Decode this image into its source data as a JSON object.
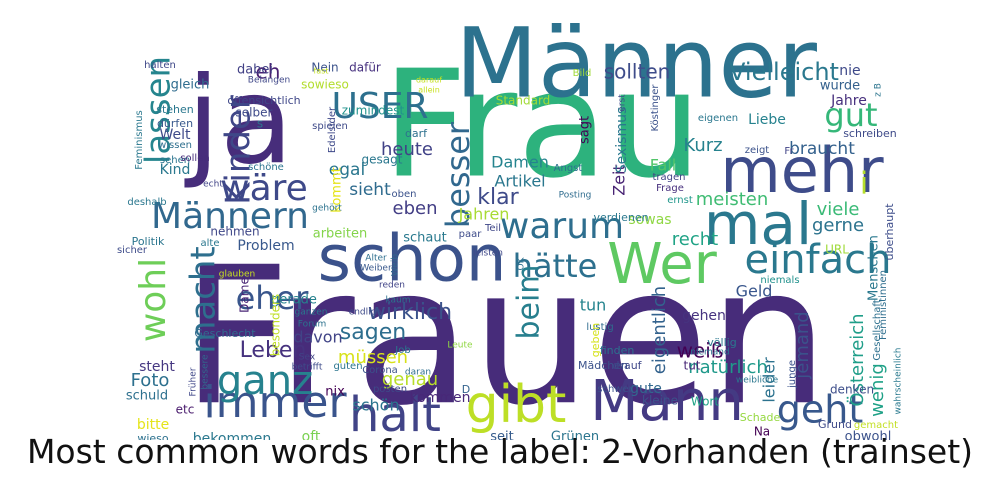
{
  "caption": "Most common words for the label: 2-Vorhanden (trainset)",
  "chart_data": {
    "type": "wordcloud",
    "title": "Most common words for the label: 2-Vorhanden (trainset)",
    "background": "#ffffff",
    "colormap": "viridis",
    "words": [
      {
        "text": "Frauen",
        "weight": 1.0,
        "color": "#472c7a"
      },
      {
        "text": "Frau",
        "weight": 0.76,
        "color": "#2db27d"
      },
      {
        "text": "Männer",
        "weight": 0.64,
        "color": "#2c728e"
      },
      {
        "text": "ja",
        "weight": 0.62,
        "color": "#472d7b"
      },
      {
        "text": "schon",
        "weight": 0.32,
        "color": "#3b528b"
      },
      {
        "text": "Mann",
        "weight": 0.32,
        "color": "#443a83"
      },
      {
        "text": "immer",
        "weight": 0.28,
        "color": "#3a548c"
      },
      {
        "text": "mehr",
        "weight": 0.3,
        "color": "#3e4c8a"
      },
      {
        "text": "gibt",
        "weight": 0.28,
        "color": "#bddf26"
      },
      {
        "text": "halt",
        "weight": 0.24,
        "color": "#414487"
      },
      {
        "text": "mal",
        "weight": 0.26,
        "color": "#2a788e"
      },
      {
        "text": "Wer",
        "weight": 0.22,
        "color": "#5ec962"
      },
      {
        "text": "einfach",
        "weight": 0.2,
        "color": "#2a788e"
      },
      {
        "text": "geht",
        "weight": 0.19,
        "color": "#38588c"
      },
      {
        "text": "Männern",
        "weight": 0.18,
        "color": "#31688e"
      },
      {
        "text": "ganz",
        "weight": 0.18,
        "color": "#26828e"
      },
      {
        "text": "wäre",
        "weight": 0.17,
        "color": "#3e4989"
      },
      {
        "text": "USER",
        "weight": 0.16,
        "color": "#2d708e"
      },
      {
        "text": "Kinder",
        "weight": 0.16,
        "color": "#3f4788"
      },
      {
        "text": "lassen",
        "weight": 0.16,
        "color": "#25858e"
      },
      {
        "text": "gut",
        "weight": 0.16,
        "color": "#35b779"
      },
      {
        "text": "warum",
        "weight": 0.15,
        "color": "#2e6e8e"
      },
      {
        "text": "hätte",
        "weight": 0.14,
        "color": "#2d708e"
      },
      {
        "text": "wohl",
        "weight": 0.16,
        "color": "#6ece58"
      },
      {
        "text": "macht",
        "weight": 0.15,
        "color": "#2e6f8e"
      },
      {
        "text": "besser",
        "weight": 0.14,
        "color": "#31688e"
      },
      {
        "text": "eher",
        "weight": 0.14,
        "color": "#39568c"
      },
      {
        "text": "beim",
        "weight": 0.13,
        "color": "#277f8e"
      },
      {
        "text": "i",
        "weight": 0.13,
        "color": "#b5de2b"
      },
      {
        "text": "Leben",
        "weight": 0.1,
        "color": "#46327e"
      },
      {
        "text": "sagen",
        "weight": 0.1,
        "color": "#2e6e8e"
      },
      {
        "text": "wirklich",
        "weight": 0.09,
        "color": "#3b528b"
      },
      {
        "text": "Vielleicht",
        "weight": 0.09,
        "color": "#2a788e"
      },
      {
        "text": "sollten",
        "weight": 0.08,
        "color": "#3e4c8a"
      },
      {
        "text": "eh",
        "weight": 0.09,
        "color": "#481f71"
      },
      {
        "text": "klar",
        "weight": 0.08,
        "color": "#3e4a89"
      },
      {
        "text": "eben",
        "weight": 0.07,
        "color": "#433e85"
      },
      {
        "text": "genau",
        "weight": 0.07,
        "color": "#b8de29"
      },
      {
        "text": "Foto",
        "weight": 0.07,
        "color": "#2d708e"
      },
      {
        "text": "recht",
        "weight": 0.07,
        "color": "#20a386"
      },
      {
        "text": "natürlich",
        "weight": 0.07,
        "color": "#1f998a"
      },
      {
        "text": "viele",
        "weight": 0.06,
        "color": "#3aba76"
      },
      {
        "text": "gerne",
        "weight": 0.06,
        "color": "#2c738e"
      },
      {
        "text": "braucht",
        "weight": 0.06,
        "color": "#34618d"
      },
      {
        "text": "Kurz",
        "weight": 0.06,
        "color": "#26828e"
      },
      {
        "text": "Artikel",
        "weight": 0.06,
        "color": "#2a778e"
      },
      {
        "text": "Damen",
        "weight": 0.05,
        "color": "#25848e"
      },
      {
        "text": "meisten",
        "weight": 0.06,
        "color": "#3fbc73"
      },
      {
        "text": "Fall",
        "weight": 0.05,
        "color": "#52c569"
      },
      {
        "text": "heute",
        "weight": 0.05,
        "color": "#414287"
      },
      {
        "text": "egal",
        "weight": 0.05,
        "color": "#2a768e"
      },
      {
        "text": "sieht",
        "weight": 0.05,
        "color": "#2f6b8e"
      },
      {
        "text": "müssen",
        "weight": 0.05,
        "color": "#d8e219"
      },
      {
        "text": "schön",
        "weight": 0.04,
        "color": "#2b748e"
      },
      {
        "text": "weiß",
        "weight": 0.05,
        "color": "#440154"
      },
      {
        "text": "jemand",
        "weight": 0.05,
        "color": "#3b528b"
      },
      {
        "text": "leider",
        "weight": 0.04,
        "color": "#2c728e"
      },
      {
        "text": "eigentlich",
        "weight": 0.05,
        "color": "#33628d"
      },
      {
        "text": "wenig",
        "weight": 0.05,
        "color": "#1fa187"
      },
      {
        "text": "Österreich",
        "weight": 0.05,
        "color": "#1f9e89"
      },
      {
        "text": "Zeit",
        "weight": 0.05,
        "color": "#482374"
      },
      {
        "text": "Geld",
        "weight": 0.04,
        "color": "#39568c"
      },
      {
        "text": "Jahre",
        "weight": 0.04,
        "color": "#472f7d"
      },
      {
        "text": "Jahren",
        "weight": 0.04,
        "color": "#a8db34"
      },
      {
        "text": "Kind",
        "weight": 0.04,
        "color": "#2a788e"
      },
      {
        "text": "Welt",
        "weight": 0.04,
        "color": "#3e4a89"
      },
      {
        "text": "Problem",
        "weight": 0.04,
        "color": "#38588c"
      },
      {
        "text": "steht",
        "weight": 0.04,
        "color": "#453781"
      },
      {
        "text": "bitte",
        "weight": 0.04,
        "color": "#e5e419"
      },
      {
        "text": "kommen",
        "weight": 0.04,
        "color": "#482878"
      },
      {
        "text": "bekommen",
        "weight": 0.03,
        "color": "#2a788e"
      },
      {
        "text": "davon",
        "weight": 0.04,
        "color": "#414487"
      },
      {
        "text": "oft",
        "weight": 0.04,
        "color": "#7ad151"
      },
      {
        "text": "sowas",
        "weight": 0.03,
        "color": "#8fd744"
      },
      {
        "text": "tun",
        "weight": 0.04,
        "color": "#25848e"
      },
      {
        "text": "gehen",
        "weight": 0.04,
        "color": "#46337f"
      },
      {
        "text": "gute",
        "weight": 0.03,
        "color": "#31688e"
      },
      {
        "text": "nie",
        "weight": 0.04,
        "color": "#3e4989"
      },
      {
        "text": "wurde",
        "weight": 0.03,
        "color": "#34608d"
      },
      {
        "text": "Liebe",
        "weight": 0.03,
        "color": "#26828e"
      },
      {
        "text": "sagt",
        "weight": 0.03,
        "color": "#440154"
      },
      {
        "text": "Sexismus",
        "weight": 0.04,
        "color": "#2a788e"
      },
      {
        "text": "kommt",
        "weight": 0.04,
        "color": "#e5e419"
      },
      {
        "text": "gleich",
        "weight": 0.03,
        "color": "#2f6c8e"
      },
      {
        "text": "dabei",
        "weight": 0.03,
        "color": "#424186"
      },
      {
        "text": "Nein",
        "weight": 0.03,
        "color": "#3b528b"
      },
      {
        "text": "dafür",
        "weight": 0.03,
        "color": "#46307e"
      },
      {
        "text": "sowieso",
        "weight": 0.03,
        "color": "#b2dd2d"
      },
      {
        "text": "zumindest",
        "weight": 0.03,
        "color": "#20928c"
      },
      {
        "text": "arbeiten",
        "weight": 0.03,
        "color": "#84d44b"
      },
      {
        "text": "schaut",
        "weight": 0.03,
        "color": "#29798e"
      },
      {
        "text": "schreiben",
        "weight": 0.03,
        "color": "#3e4a89"
      },
      {
        "text": "Grünen",
        "weight": 0.03,
        "color": "#2b758e"
      },
      {
        "text": "seit",
        "weight": 0.03,
        "color": "#365c8d"
      },
      {
        "text": "obwohl",
        "weight": 0.03,
        "color": "#3b528b"
      },
      {
        "text": "wieso",
        "weight": 0.03,
        "color": "#2c718e"
      },
      {
        "text": "Menschen",
        "weight": 0.03,
        "color": "#2a788e"
      },
      {
        "text": "URL",
        "weight": 0.03,
        "color": "#9fda3a"
      },
      {
        "text": "denken",
        "weight": 0.03,
        "color": "#3d4e8a"
      },
      {
        "text": "etc",
        "weight": 0.03,
        "color": "#481a6c"
      },
      {
        "text": "Dame",
        "weight": 0.03,
        "color": "#482475"
      },
      {
        "text": "überhaupt",
        "weight": 0.03,
        "color": "#3d4d8a"
      },
      {
        "text": "Politik",
        "weight": 0.03,
        "color": "#2b758e"
      },
      {
        "text": "halten",
        "weight": 0.03,
        "color": "#3f4889"
      },
      {
        "text": "stehen",
        "weight": 0.02,
        "color": "#2a778e"
      },
      {
        "text": "dürfen",
        "weight": 0.02,
        "color": "#38588c"
      },
      {
        "text": "wissen",
        "weight": 0.02,
        "color": "#2e6f8e"
      },
      {
        "text": "sehen",
        "weight": 0.02,
        "color": "#2b748e"
      },
      {
        "text": "sollen",
        "weight": 0.02,
        "color": "#472d7b"
      },
      {
        "text": "deshalb",
        "weight": 0.02,
        "color": "#2a778e"
      },
      {
        "text": "nehmen",
        "weight": 0.02,
        "color": "#3f4788"
      },
      {
        "text": "gerade",
        "weight": 0.02,
        "color": "#26828e"
      },
      {
        "text": "besonders",
        "weight": 0.02,
        "color": "#c0df25"
      },
      {
        "text": "Geschlecht",
        "weight": 0.02,
        "color": "#306a8e"
      },
      {
        "text": "tragen",
        "weight": 0.02,
        "color": "#414487"
      },
      {
        "text": "Frage",
        "weight": 0.02,
        "color": "#472f7d"
      },
      {
        "text": "ernst",
        "weight": 0.02,
        "color": "#1f978b"
      },
      {
        "text": "tut",
        "weight": 0.02,
        "color": "#482677"
      },
      {
        "text": "Mädchen",
        "weight": 0.02,
        "color": "#3b528b"
      },
      {
        "text": "finden",
        "weight": 0.02,
        "color": "#2c718e"
      },
      {
        "text": "drauf",
        "weight": 0.02,
        "color": "#3f4889"
      },
      {
        "text": "völlig",
        "weight": 0.02,
        "color": "#2a788e"
      },
      {
        "text": "niemals",
        "weight": 0.02,
        "color": "#21918c"
      },
      {
        "text": "lustig",
        "weight": 0.02,
        "color": "#2f6c8e"
      },
      {
        "text": "Wort",
        "weight": 0.02,
        "color": "#20a486"
      },
      {
        "text": "kleine",
        "weight": 0.02,
        "color": "#3b528b"
      },
      {
        "text": "nix",
        "weight": 0.02,
        "color": "#440154"
      },
      {
        "text": "schuld",
        "weight": 0.02,
        "color": "#2d708e"
      },
      {
        "text": "sicher",
        "weight": 0.02,
        "color": "#3e4c8a"
      },
      {
        "text": "alte",
        "weight": 0.02,
        "color": "#2a778e"
      },
      {
        "text": "Teil",
        "weight": 0.02,
        "color": "#3f4788"
      },
      {
        "text": "Alter",
        "weight": 0.02,
        "color": "#2e6e8e"
      },
      {
        "text": "Weiber",
        "weight": 0.02,
        "color": "#38588c"
      },
      {
        "text": "reden",
        "weight": 0.02,
        "color": "#414487"
      },
      {
        "text": "kaum",
        "weight": 0.02,
        "color": "#2c728e"
      },
      {
        "text": "endlich",
        "weight": 0.02,
        "color": "#3e4a89"
      },
      {
        "text": "Job",
        "weight": 0.02,
        "color": "#2b748e"
      },
      {
        "text": "Corona",
        "weight": 0.02,
        "color": "#3b528b"
      },
      {
        "text": "daran",
        "weight": 0.02,
        "color": "#2e6f8e"
      },
      {
        "text": "Leute",
        "weight": 0.02,
        "color": "#90d743"
      },
      {
        "text": "ganzen",
        "weight": 0.02,
        "color": "#2a788e"
      },
      {
        "text": "Forum",
        "weight": 0.02,
        "color": "#2c718e"
      },
      {
        "text": "posten",
        "weight": 0.02,
        "color": "#3e4989"
      },
      {
        "text": "schwer",
        "weight": 0.02,
        "color": "#3b528b"
      },
      {
        "text": "weibliche",
        "weight": 0.02,
        "color": "#2a768e"
      },
      {
        "text": "Schade",
        "weight": 0.02,
        "color": "#95d840"
      },
      {
        "text": "Grund",
        "weight": 0.02,
        "color": "#3e4a89"
      },
      {
        "text": "gemacht",
        "weight": 0.02,
        "color": "#c2df23"
      },
      {
        "text": "Na",
        "weight": 0.02,
        "color": "#440154"
      },
      {
        "text": "D",
        "weight": 0.02,
        "color": "#33638d"
      },
      {
        "text": "guten",
        "weight": 0.02,
        "color": "#2b758e"
      },
      {
        "text": "Früher",
        "weight": 0.02,
        "color": "#3f4788"
      },
      {
        "text": "bessere",
        "weight": 0.02,
        "color": "#31688e"
      },
      {
        "text": "Sex",
        "weight": 0.02,
        "color": "#414487"
      },
      {
        "text": "betrifft",
        "weight": 0.02,
        "color": "#3e4c8a"
      },
      {
        "text": "niemand",
        "weight": 0.02,
        "color": "#2c718e"
      },
      {
        "text": "junge",
        "weight": 0.02,
        "color": "#3b528b"
      },
      {
        "text": "Gesellschaft",
        "weight": 0.02,
        "color": "#2d708e"
      },
      {
        "text": "Feministinnen",
        "weight": 0.02,
        "color": "#2e6e8e"
      },
      {
        "text": "wahrscheinlich",
        "weight": 0.02,
        "color": "#29798e"
      },
      {
        "text": "Edelsider",
        "weight": 0.02,
        "color": "#3e4989"
      },
      {
        "text": "Feminismus",
        "weight": 0.02,
        "color": "#2a788e"
      },
      {
        "text": "offensichtlich",
        "weight": 0.02,
        "color": "#3f4788"
      },
      {
        "text": "darf",
        "weight": 0.02,
        "color": "#2d708e"
      },
      {
        "text": "gesagt",
        "weight": 0.02,
        "color": "#2a778e"
      },
      {
        "text": "spielen",
        "weight": 0.02,
        "color": "#3e4a89"
      },
      {
        "text": "echt",
        "weight": 0.02,
        "color": "#414487"
      },
      {
        "text": "schöne",
        "weight": 0.02,
        "color": "#2b748e"
      },
      {
        "text": "oben",
        "weight": 0.02,
        "color": "#3b528b"
      },
      {
        "text": "gehört",
        "weight": 0.02,
        "color": "#2c728e"
      },
      {
        "text": "paar",
        "weight": 0.02,
        "color": "#3e4c8a"
      },
      {
        "text": "leisten",
        "weight": 0.02,
        "color": "#3f4889"
      },
      {
        "text": "verdienen",
        "weight": 0.02,
        "color": "#2a788e"
      },
      {
        "text": "OK",
        "weight": 0.02,
        "color": "#2d708e"
      },
      {
        "text": "zeigt",
        "weight": 0.02,
        "color": "#3b528b"
      },
      {
        "text": "Angst",
        "weight": 0.02,
        "color": "#2c718e"
      },
      {
        "text": "Posting",
        "weight": 0.02,
        "color": "#2f6c8e"
      },
      {
        "text": "Bild",
        "weight": 0.02,
        "color": "#a0da39"
      },
      {
        "text": "Standard",
        "weight": 0.02,
        "color": "#a2da37"
      },
      {
        "text": "erst",
        "weight": 0.02,
        "color": "#3e4a89"
      },
      {
        "text": "Köstinger",
        "weight": 0.02,
        "color": "#3b528b"
      },
      {
        "text": "eigenen",
        "weight": 0.02,
        "color": "#2a778e"
      },
      {
        "text": "Fr",
        "weight": 0.02,
        "color": "#414487"
      },
      {
        "text": "z B",
        "weight": 0.02,
        "color": "#2b748e"
      },
      {
        "text": "Belangen",
        "weight": 0.02,
        "color": "#3f4788"
      },
      {
        "text": "fast",
        "weight": 0.02,
        "color": "#c2df23"
      },
      {
        "text": "darauf",
        "weight": 0.02,
        "color": "#c5e021"
      },
      {
        "text": "allein",
        "weight": 0.02,
        "color": "#c8e020"
      },
      {
        "text": "selber",
        "weight": 0.02,
        "color": "#3e4a89"
      },
      {
        "text": "s",
        "weight": 0.02,
        "color": "#2c728e"
      },
      {
        "text": "Weib",
        "weight": 0.02,
        "color": "#31688e"
      },
      {
        "text": "glauben",
        "weight": 0.02,
        "color": "#c8e020"
      },
      {
        "text": "geben",
        "weight": 0.02,
        "color": "#d5e21a"
      },
      {
        "text": "gar",
        "weight": 0.02,
        "color": "#3b528b"
      }
    ]
  }
}
